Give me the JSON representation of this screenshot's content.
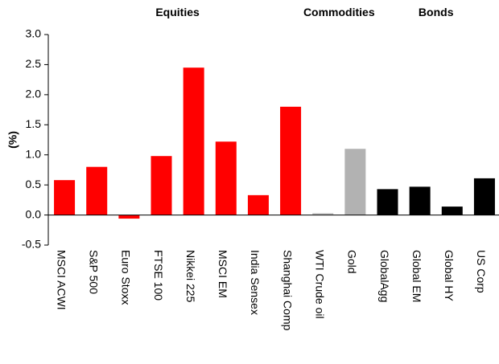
{
  "chart_data": {
    "type": "bar",
    "title": "",
    "xlabel": "",
    "ylabel": "(%)",
    "ylim": [
      -0.5,
      3.0
    ],
    "yticks": [
      "-0.5",
      "0.0",
      "0.5",
      "1.0",
      "1.5",
      "2.0",
      "2.5",
      "3.0"
    ],
    "grid": false,
    "groups": [
      {
        "label": "Equities",
        "first": 0,
        "last": 7
      },
      {
        "label": "Commodities",
        "first": 8,
        "last": 9
      },
      {
        "label": "Bonds",
        "first": 10,
        "last": 13
      }
    ],
    "categories": [
      "MSCI ACWI",
      "S&P 500",
      "Euro Stoxx",
      "FTSE 100",
      "Nikkei 225",
      "MSCI EM",
      "India Sensex",
      "Shanghai Comp",
      "WTI Crude oil",
      "Gold",
      "GlobalAgg",
      "Global EM",
      "Global HY",
      "US Corp"
    ],
    "values": [
      0.58,
      0.8,
      -0.06,
      0.98,
      2.45,
      1.22,
      0.33,
      1.8,
      0.03,
      1.1,
      0.43,
      0.47,
      0.14,
      0.61
    ],
    "colors": [
      "#ff0000",
      "#ff0000",
      "#ff0000",
      "#ff0000",
      "#ff0000",
      "#ff0000",
      "#ff0000",
      "#ff0000",
      "#bfbfbf",
      "#b2b2b2",
      "#000000",
      "#000000",
      "#000000",
      "#000000"
    ]
  }
}
